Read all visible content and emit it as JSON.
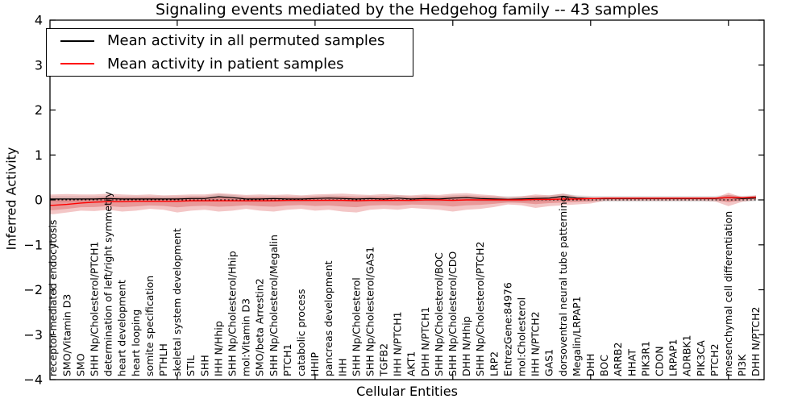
{
  "chart_data": {
    "type": "line",
    "title": "Signaling events mediated by the Hedgehog family -- 43 samples",
    "xlabel": "Cellular Entities",
    "ylabel": "Inferred Activity",
    "ylim": [
      -4,
      4
    ],
    "ytick_values": [
      4,
      3,
      2,
      1,
      0,
      -1,
      -2,
      -3,
      -4
    ],
    "ytick_labels": [
      "4",
      "3",
      "2",
      "1",
      "0",
      "−1",
      "−2",
      "−3",
      "−4"
    ],
    "xtick_indices": [
      9,
      19,
      29,
      39,
      49
    ],
    "grid": false,
    "zero_line": {
      "style": "dotted",
      "color": "#000000",
      "y": 0
    },
    "legend_position": "upper left",
    "legend": [
      {
        "label": "Mean activity in all permuted samples",
        "color": "#000000"
      },
      {
        "label": "Mean activity in patient samples",
        "color": "#ff0000"
      }
    ],
    "categories": [
      "receptor-mediated endocytosis",
      "SMO/Vitamin D3",
      "SMO",
      "SHH Np/Cholesterol/PTCH1",
      "determination of left/right symmetry",
      "heart development",
      "heart looping",
      "somite specification",
      "PTHLH",
      "skeletal system development",
      "STIL",
      "SHH",
      "IHH N/Hhip",
      "SHH Np/Cholesterol/Hhip",
      "mol:Vitamin D3",
      "SMO/beta Arrestin2",
      "SHH Np/Cholesterol/Megalin",
      "PTCH1",
      "catabolic process",
      "HHIP",
      "pancreas development",
      "IHH",
      "SHH Np/Cholesterol",
      "SHH Np/Cholesterol/GAS1",
      "TGFB2",
      "IHH N/PTCH1",
      "AKT1",
      "DHH N/PTCH1",
      "SHH Np/Cholesterol/BOC",
      "SHH Np/Cholesterol/CDO",
      "DHH N/Hhip",
      "SHH Np/Cholesterol/PTCH2",
      "LRP2",
      "EntrezGene:84976",
      "mol:Cholesterol",
      "IHH N/PTCH2",
      "GAS1",
      "dorsoventral neural tube patterning",
      "Megalin/LRPAP1",
      "DHH",
      "BOC",
      "ARRB2",
      "HHAT",
      "PIK3R1",
      "CDON",
      "LRPAP1",
      "ADRBK1",
      "PIK3CA",
      "PTCH2",
      "mesenchymal cell differentiation",
      "PI3K",
      "DHH N/PTCH2"
    ],
    "series": [
      {
        "name": "Mean activity in all permuted samples",
        "color": "#000000",
        "values": [
          0.02,
          0.02,
          0.02,
          0.02,
          0.03,
          0.02,
          0.02,
          0.02,
          0.02,
          0.02,
          0.03,
          0.03,
          0.07,
          0.05,
          0.02,
          0.02,
          0.03,
          0.02,
          0.02,
          0.03,
          0.04,
          0.03,
          0.02,
          0.03,
          0.02,
          0.04,
          0.02,
          0.03,
          0.02,
          0.04,
          0.05,
          0.03,
          0.02,
          0.01,
          0.02,
          0.03,
          0.04,
          0.08,
          0.04,
          0.03,
          0.03,
          0.03,
          0.03,
          0.03,
          0.03,
          0.03,
          0.03,
          0.03,
          0.03,
          0.05,
          0.03,
          0.04
        ]
      },
      {
        "name": "Mean activity in patient samples",
        "color": "#ff0000",
        "values": [
          -0.12,
          -0.1,
          -0.07,
          -0.05,
          -0.04,
          -0.04,
          -0.03,
          -0.03,
          -0.03,
          -0.03,
          -0.02,
          -0.02,
          -0.02,
          -0.02,
          -0.02,
          -0.02,
          -0.02,
          -0.01,
          -0.01,
          -0.01,
          -0.01,
          -0.01,
          -0.02,
          -0.01,
          -0.01,
          -0.01,
          -0.01,
          0.0,
          0.0,
          -0.01,
          0.0,
          0.0,
          0.0,
          0.0,
          0.0,
          0.01,
          0.01,
          0.02,
          0.02,
          0.03,
          0.04,
          0.04,
          0.04,
          0.04,
          0.04,
          0.04,
          0.04,
          0.04,
          0.04,
          0.05,
          0.05,
          0.06
        ]
      }
    ],
    "bands": [
      {
        "name": "permuted-sample-range",
        "color": "#c8c8c8",
        "opacity": 0.55,
        "upper": [
          0.08,
          0.08,
          0.08,
          0.08,
          0.09,
          0.08,
          0.08,
          0.08,
          0.08,
          0.08,
          0.09,
          0.09,
          0.13,
          0.11,
          0.08,
          0.08,
          0.09,
          0.08,
          0.08,
          0.09,
          0.1,
          0.09,
          0.08,
          0.09,
          0.08,
          0.1,
          0.08,
          0.09,
          0.08,
          0.1,
          0.11,
          0.09,
          0.08,
          0.08,
          0.08,
          0.09,
          0.1,
          0.14,
          0.1,
          0.09,
          0.09,
          0.09,
          0.09,
          0.09,
          0.09,
          0.09,
          0.09,
          0.09,
          0.09,
          0.11,
          0.09,
          0.1
        ],
        "lower": [
          -0.05,
          -0.05,
          -0.05,
          -0.05,
          -0.04,
          -0.05,
          -0.05,
          -0.05,
          -0.05,
          -0.05,
          -0.04,
          -0.04,
          -0.02,
          -0.03,
          -0.05,
          -0.05,
          -0.04,
          -0.05,
          -0.05,
          -0.04,
          -0.03,
          -0.04,
          -0.05,
          -0.04,
          -0.05,
          -0.03,
          -0.05,
          -0.04,
          -0.05,
          -0.03,
          -0.02,
          -0.04,
          -0.05,
          -0.06,
          -0.05,
          -0.04,
          -0.03,
          -0.01,
          -0.03,
          -0.04,
          -0.04,
          -0.04,
          -0.04,
          -0.04,
          -0.04,
          -0.04,
          -0.04,
          -0.04,
          -0.04,
          -0.03,
          -0.04,
          -0.03
        ]
      },
      {
        "name": "patient-sample-range",
        "color": "#d94f4f",
        "opacity": 0.32,
        "inner_band_opacity": 0.38,
        "upper": [
          0.12,
          0.13,
          0.12,
          0.12,
          0.14,
          0.12,
          0.11,
          0.12,
          0.1,
          0.11,
          0.12,
          0.12,
          0.15,
          0.13,
          0.11,
          0.12,
          0.11,
          0.12,
          0.1,
          0.12,
          0.13,
          0.14,
          0.12,
          0.11,
          0.13,
          0.11,
          0.1,
          0.12,
          0.11,
          0.14,
          0.15,
          0.12,
          0.1,
          0.06,
          0.08,
          0.12,
          0.1,
          0.14,
          0.08,
          0.06,
          0.03,
          0.03,
          0.03,
          0.03,
          0.03,
          0.03,
          0.03,
          0.03,
          0.04,
          0.16,
          0.06,
          0.1
        ],
        "lower": [
          -0.32,
          -0.28,
          -0.24,
          -0.25,
          -0.22,
          -0.26,
          -0.24,
          -0.2,
          -0.22,
          -0.28,
          -0.24,
          -0.22,
          -0.26,
          -0.24,
          -0.2,
          -0.24,
          -0.26,
          -0.22,
          -0.2,
          -0.24,
          -0.22,
          -0.26,
          -0.28,
          -0.22,
          -0.2,
          -0.22,
          -0.18,
          -0.2,
          -0.22,
          -0.26,
          -0.22,
          -0.2,
          -0.16,
          -0.1,
          -0.12,
          -0.18,
          -0.14,
          -0.12,
          -0.1,
          -0.08,
          -0.02,
          -0.02,
          -0.02,
          -0.02,
          -0.02,
          -0.02,
          -0.02,
          -0.02,
          -0.03,
          -0.14,
          -0.04,
          0.0
        ]
      }
    ]
  }
}
